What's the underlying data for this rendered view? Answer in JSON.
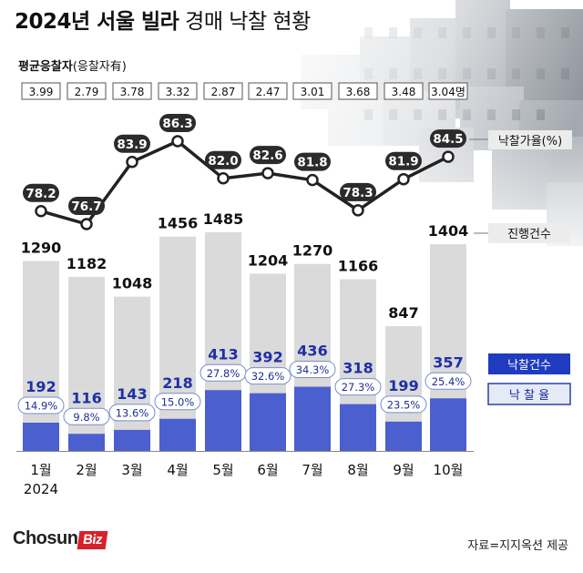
{
  "title_bold": "2024년 서울 빌라",
  "title_rest": "경매 낙찰 현황",
  "subtitle_bold": "평균응찰자",
  "subtitle_rest": "(응찰자有)",
  "brand_main": "Chosun",
  "brand_sub": "Biz",
  "source": "자료=지지옥션 제공",
  "colors": {
    "bid_count_bar": "#dadada",
    "won_count_bar": "#4b5fcf",
    "won_label": "#1e2fa6",
    "rate_line": "#222222",
    "legend_won": "#1f3bbf",
    "legend_rate_bg": "#e4ebf7"
  },
  "chart_data": {
    "type": "bar",
    "categories": [
      "1월",
      "2월",
      "3월",
      "4월",
      "5월",
      "6월",
      "7월",
      "8월",
      "9월",
      "10월"
    ],
    "x_year_label": "2024",
    "avg_bidders": [
      "3.99",
      "2.79",
      "3.78",
      "3.32",
      "2.87",
      "2.47",
      "3.01",
      "3.68",
      "3.48",
      "3.04명"
    ],
    "series": [
      {
        "name": "진행건수",
        "values": [
          1290,
          1182,
          1048,
          1456,
          1485,
          1204,
          1270,
          1166,
          847,
          1404
        ]
      },
      {
        "name": "낙찰건수",
        "values": [
          192,
          116,
          143,
          218,
          413,
          392,
          436,
          318,
          199,
          357
        ]
      },
      {
        "name": "낙찰가율(%)",
        "values": [
          78.2,
          76.7,
          83.9,
          86.3,
          82.0,
          82.6,
          81.8,
          78.3,
          81.9,
          84.5
        ]
      }
    ],
    "success_rate_labels": [
      "14.9%",
      "9.8%",
      "13.6%",
      "15.0%",
      "27.8%",
      "32.6%",
      "34.3%",
      "27.3%",
      "23.5%",
      "25.4%"
    ],
    "legend": {
      "count": "진행건수",
      "won": "낙찰건수",
      "rate": "낙 찰 율",
      "price_rate": "낙찰가율(%)"
    }
  }
}
